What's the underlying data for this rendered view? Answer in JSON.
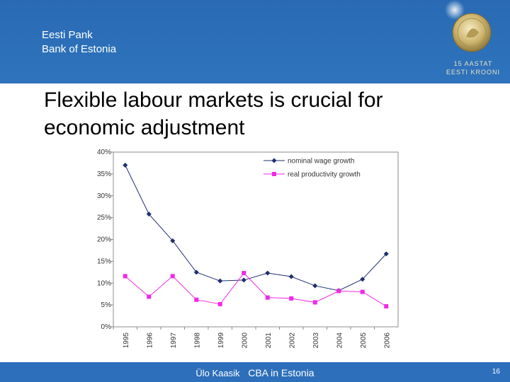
{
  "header": {
    "org_line1": "Eesti Pank",
    "org_line2": "Bank of Estonia",
    "logo_line1": "15 AASTAT",
    "logo_line2": "EESTI KROONI"
  },
  "slide": {
    "title_line1": "Flexible labour markets is crucial for",
    "title_line2": "economic adjustment"
  },
  "footer": {
    "author": "Ülo Kaasik",
    "topic": "CBA in Estonia",
    "page_number": "16"
  },
  "colors": {
    "brand_blue": "#2d6fba",
    "series1": "#1f2f6e",
    "series2": "#ee2ae6"
  },
  "chart_data": {
    "type": "line",
    "categories": [
      "1995",
      "1996",
      "1997",
      "1998",
      "1999",
      "2000",
      "2001",
      "2002",
      "2003",
      "2004",
      "2005",
      "2006"
    ],
    "y_ticks": [
      "0%",
      "5%",
      "10%",
      "15%",
      "20%",
      "25%",
      "30%",
      "35%",
      "40%"
    ],
    "ylim": [
      0,
      40
    ],
    "grid": false,
    "legend_position": "top-right",
    "series": [
      {
        "name": "nominal wage growth",
        "marker": "diamond",
        "values": [
          37,
          25.8,
          19.7,
          12.5,
          10.5,
          10.7,
          12.3,
          11.5,
          9.4,
          8.3,
          10.9,
          16.7
        ]
      },
      {
        "name": "real productivity growth",
        "marker": "square",
        "values": [
          11.6,
          6.9,
          11.6,
          6.2,
          5.2,
          12.3,
          6.7,
          6.5,
          5.6,
          8.2,
          8.0,
          4.7
        ]
      }
    ]
  }
}
